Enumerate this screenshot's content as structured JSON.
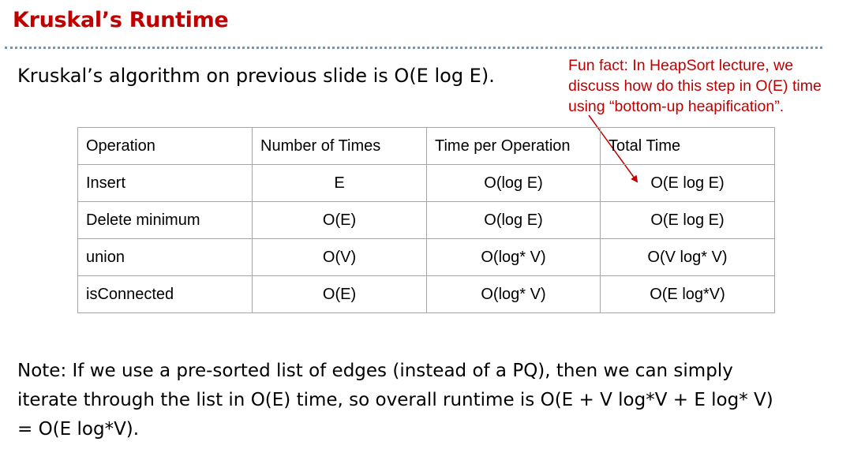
{
  "title": "Kruskal’s Runtime",
  "intro": "Kruskal’s algorithm on previous slide is O(E log E).",
  "callout": {
    "lines": [
      "Fun fact: In HeapSort lecture, we",
      "discuss how do this step in O(E) time",
      "using “bottom-up heapification”."
    ]
  },
  "table": {
    "headers": [
      "Operation",
      "Number of Times",
      "Time per Operation",
      "Total Time"
    ],
    "rows": [
      [
        "Insert",
        "E",
        "O(log E)",
        "O(E log E)"
      ],
      [
        "Delete minimum",
        "O(E)",
        "O(log E)",
        "O(E log E)"
      ],
      [
        "union",
        "O(V)",
        "O(log* V)",
        "O(V log* V)"
      ],
      [
        "isConnected",
        "O(E)",
        "O(log* V)",
        "O(E log*V)"
      ]
    ]
  },
  "note": {
    "lines": [
      "Note: If we use a pre-sorted list of edges (instead of a PQ), then we can simply",
      "iterate through the list in O(E) time, so overall runtime is O(E + V log*V + E log* V)",
      "= O(E log*V)."
    ]
  },
  "colors": {
    "title": "#c00000",
    "callout": "#c00000",
    "rule": "#5b9bd5",
    "table_border": "#a6a6a6"
  }
}
